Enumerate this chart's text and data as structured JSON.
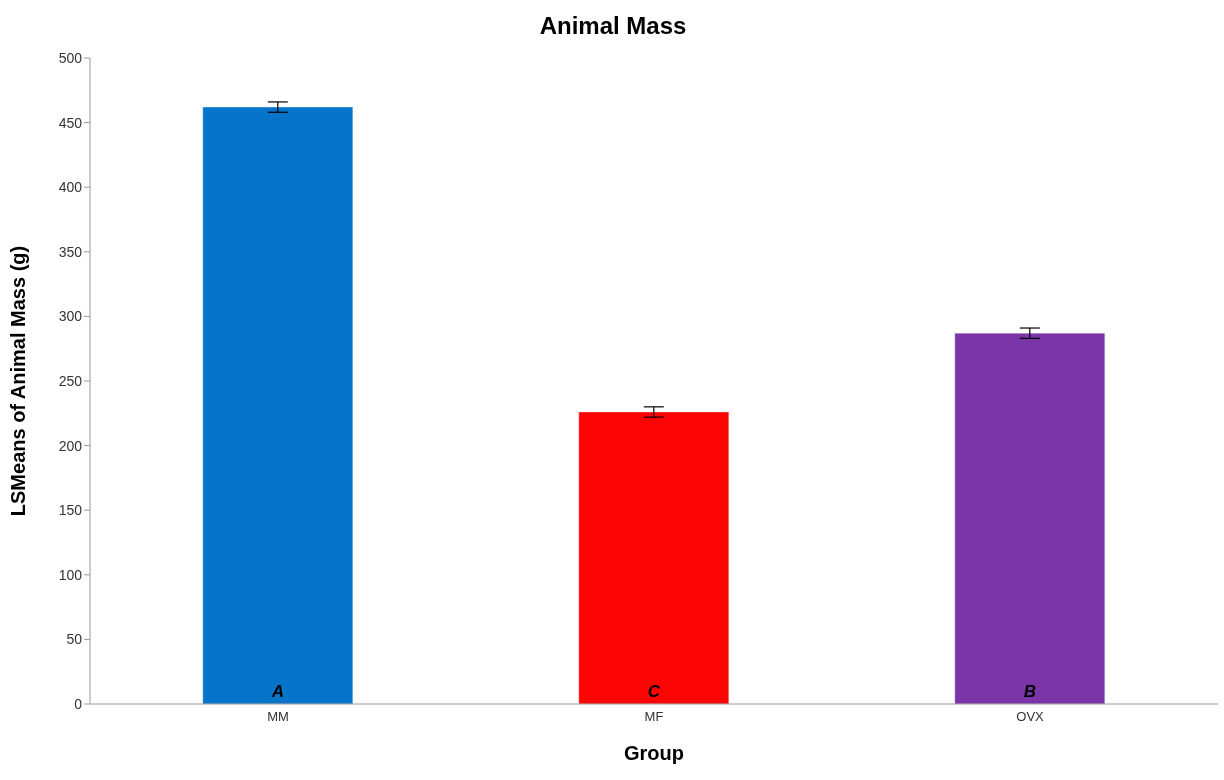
{
  "chart_data": {
    "type": "bar",
    "title": "Animal Mass",
    "xlabel": "Group",
    "ylabel": "LSMeans of Animal Mass (g)",
    "categories": [
      "MM",
      "MF",
      "OVX"
    ],
    "values": [
      462,
      226,
      287
    ],
    "errors": [
      4,
      4,
      4
    ],
    "colors": [
      "#0674c8",
      "#fe0505",
      "#7a36a8"
    ],
    "ylim": [
      0,
      500
    ],
    "yticks": [
      0,
      50,
      100,
      150,
      200,
      250,
      300,
      350,
      400,
      450,
      500
    ],
    "grid": false,
    "legend": false,
    "annotations": [
      "A",
      "C",
      "B"
    ]
  }
}
